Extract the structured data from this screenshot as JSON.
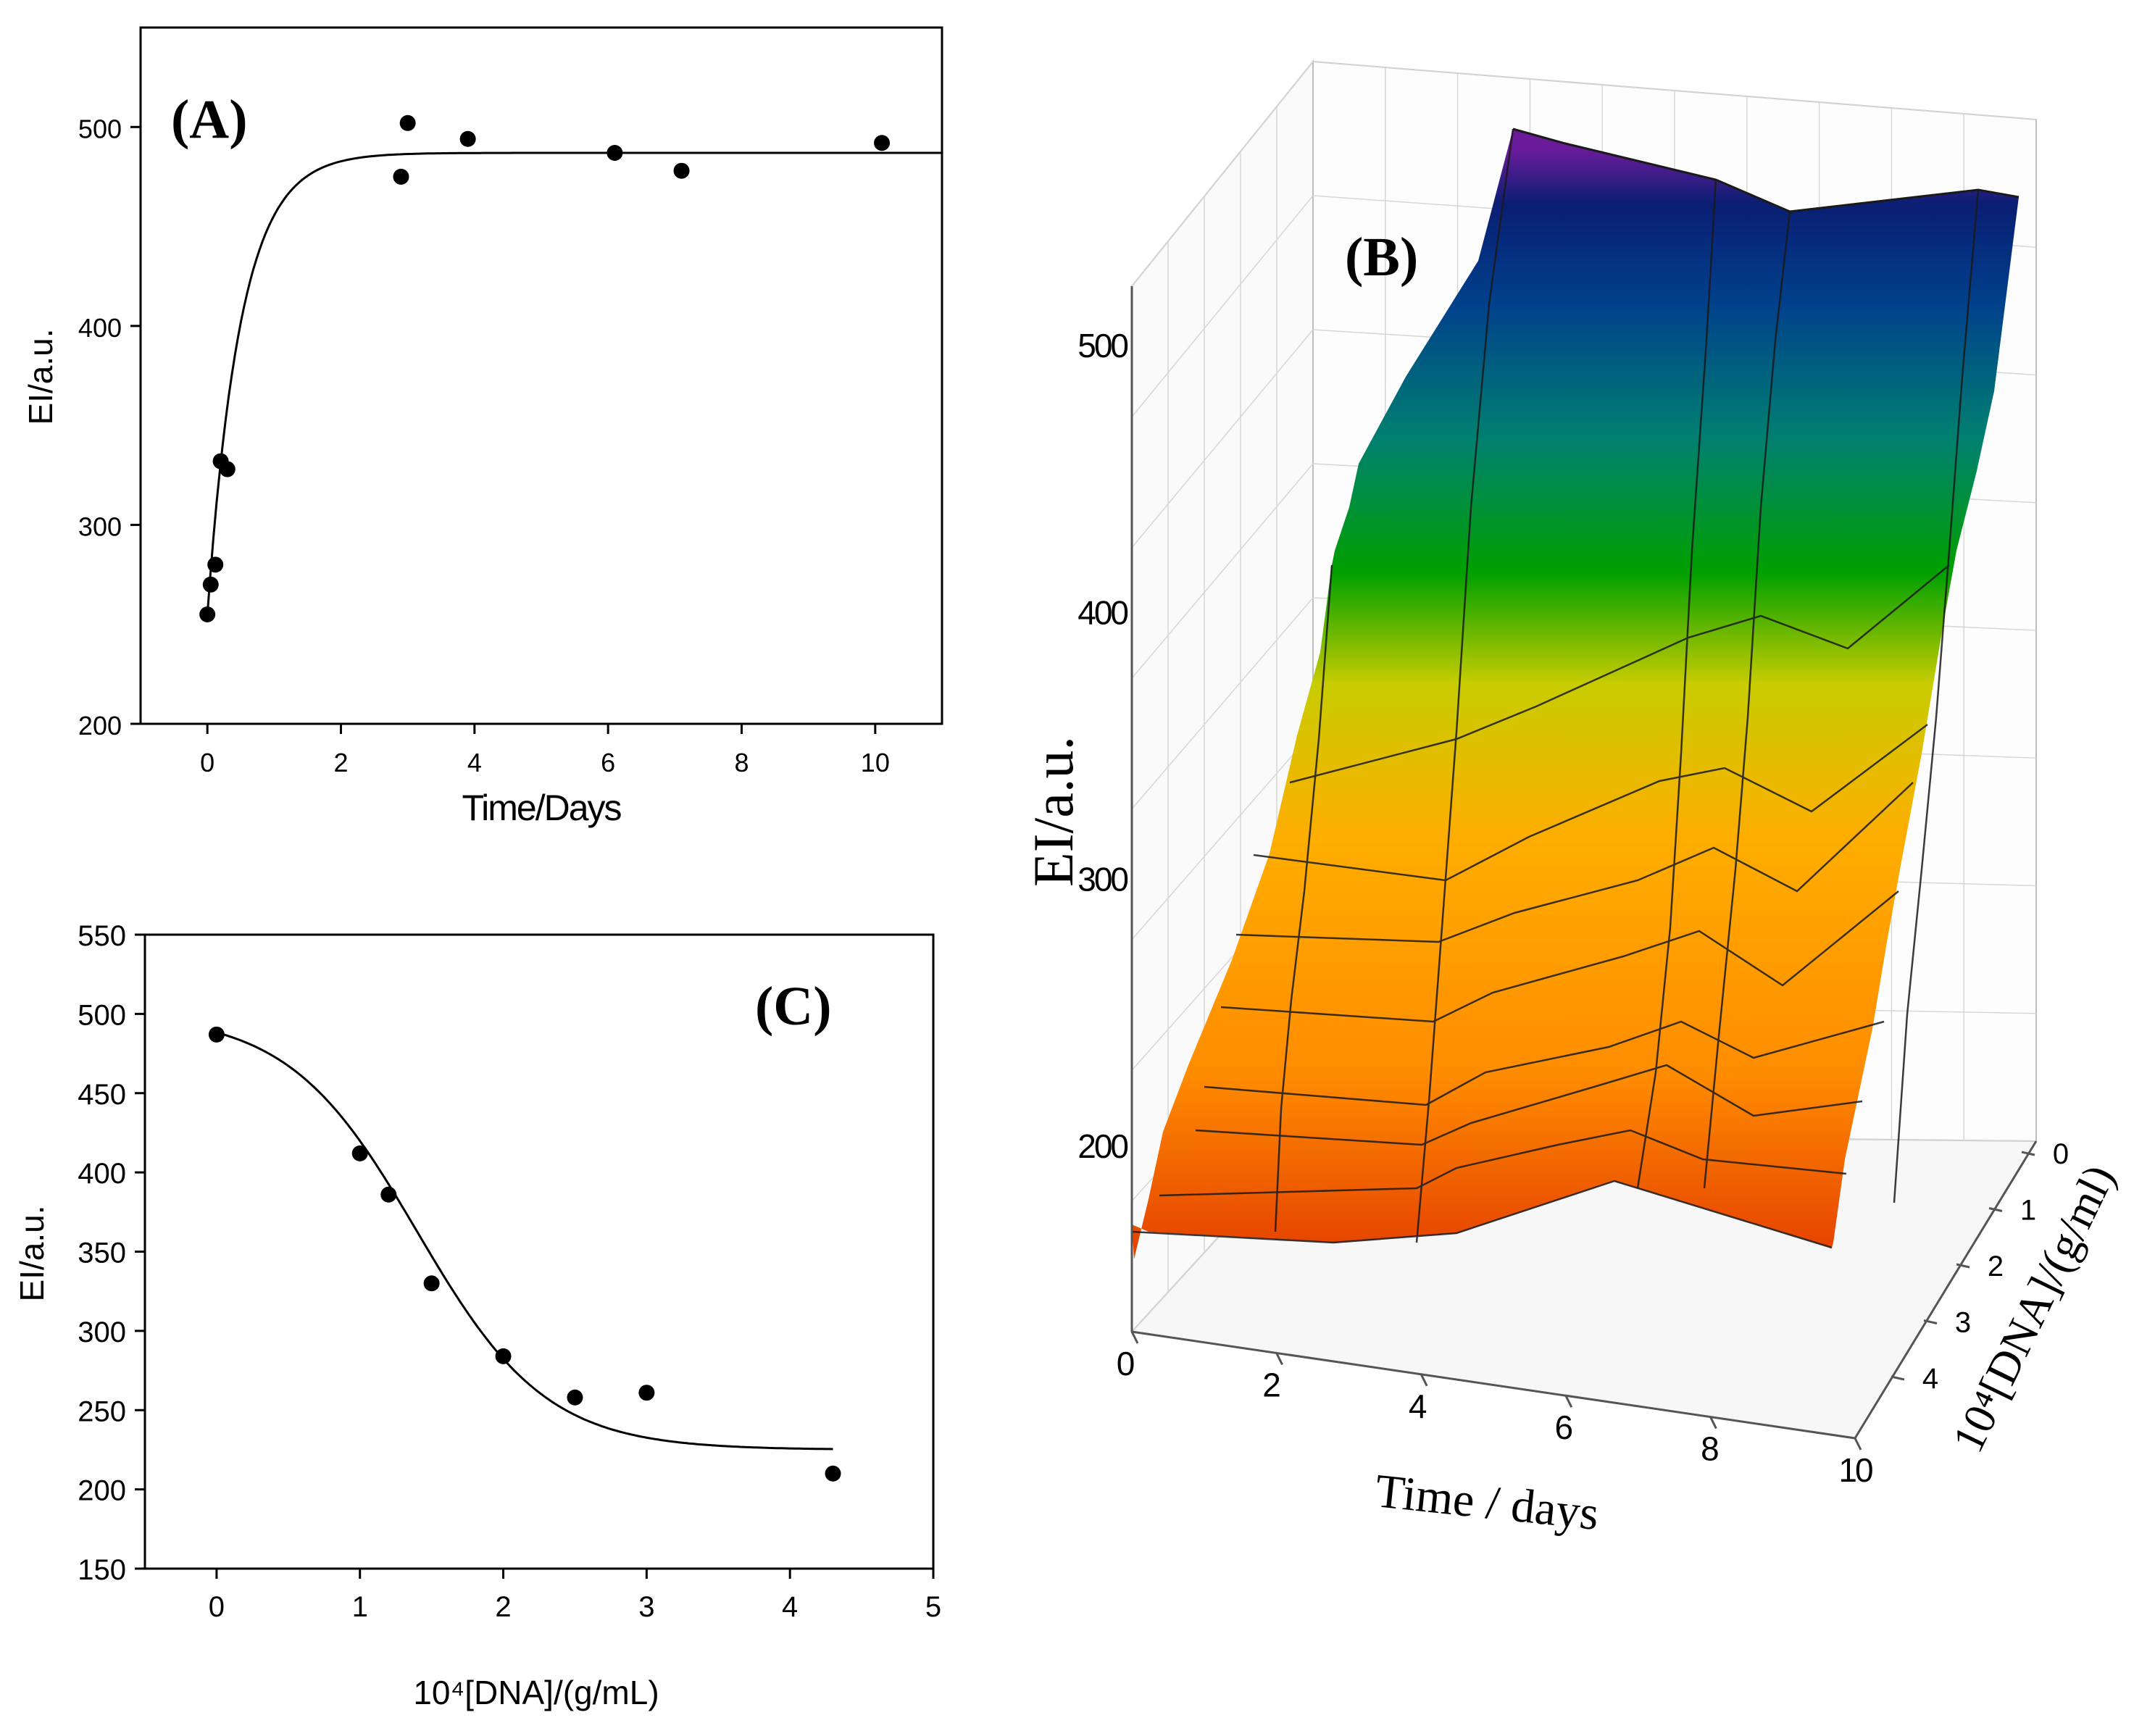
{
  "chart_data": [
    {
      "panel": "A",
      "type": "scatter",
      "panel_label": "(A)",
      "xlabel": "Time/Days",
      "ylabel": "EI/a.u.",
      "xlim": [
        -1,
        11
      ],
      "ylim": [
        200,
        550
      ],
      "xticks": [
        0,
        2,
        4,
        6,
        8,
        10
      ],
      "yticks": [
        200,
        300,
        400,
        500
      ],
      "points": [
        {
          "x": 0,
          "y": 255
        },
        {
          "x": 0.05,
          "y": 270
        },
        {
          "x": 0.12,
          "y": 280
        },
        {
          "x": 0.2,
          "y": 332
        },
        {
          "x": 0.3,
          "y": 328
        },
        {
          "x": 2.9,
          "y": 475
        },
        {
          "x": 3.0,
          "y": 502
        },
        {
          "x": 3.9,
          "y": 494
        },
        {
          "x": 6.1,
          "y": 487
        },
        {
          "x": 7.1,
          "y": 478
        },
        {
          "x": 10.1,
          "y": 492
        }
      ],
      "fit": {
        "type": "exponential-rise",
        "plateau": 487,
        "start": 255,
        "rate": 2.0,
        "x_range": [
          0,
          11
        ]
      }
    },
    {
      "panel": "C",
      "type": "scatter",
      "panel_label": "(C)",
      "xlabel": "10⁴[DNA]/(g/mL)",
      "ylabel": "EI/a.u.",
      "xlim": [
        -0.5,
        5
      ],
      "ylim": [
        150,
        550
      ],
      "xticks": [
        0,
        1,
        2,
        3,
        4,
        5
      ],
      "yticks": [
        150,
        200,
        250,
        300,
        350,
        400,
        450,
        500,
        550
      ],
      "points": [
        {
          "x": 0,
          "y": 487
        },
        {
          "x": 1.0,
          "y": 412
        },
        {
          "x": 1.2,
          "y": 386
        },
        {
          "x": 1.5,
          "y": 330
        },
        {
          "x": 2.0,
          "y": 284
        },
        {
          "x": 2.5,
          "y": 258
        },
        {
          "x": 3.0,
          "y": 261
        },
        {
          "x": 4.3,
          "y": 210
        }
      ],
      "fit": {
        "type": "sigmoid",
        "top": 500,
        "bottom": 225,
        "x0": 1.4,
        "slope": 0.45,
        "x_range": [
          0,
          4.3
        ]
      }
    },
    {
      "panel": "B",
      "type": "surface3d",
      "panel_label": "(B)",
      "xlabel": "Time / days",
      "ylabel": "10⁴[DNA]/(g/ml)",
      "zlabel": "EI/a.u.",
      "x_ticks": [
        0,
        2,
        4,
        6,
        8,
        10
      ],
      "y_ticks": [
        0,
        1,
        2,
        3,
        4
      ],
      "z_ticks": [
        200,
        300,
        400,
        500
      ],
      "colormap": [
        "#e33d00",
        "#ff8c00",
        "#ffad00",
        "#c8cc00",
        "#00a000",
        "#008070",
        "#00418c",
        "#0a1e73",
        "#6a1b9a"
      ]
    }
  ]
}
